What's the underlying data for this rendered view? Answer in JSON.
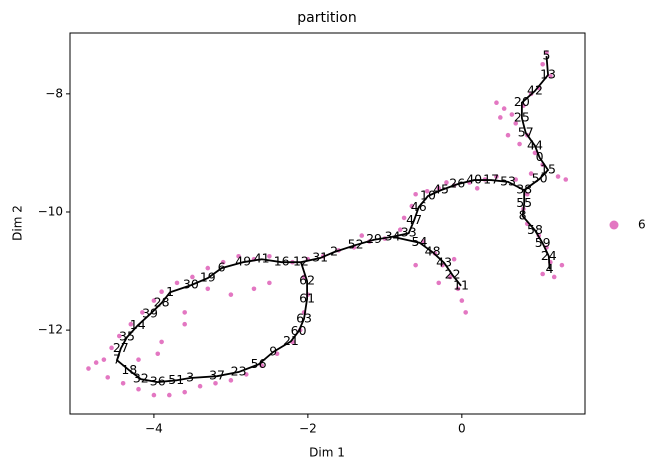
{
  "chart_data": {
    "type": "scatter",
    "title": "partition",
    "x_label": "Dim 1",
    "y_label": "Dim 2",
    "xlim": [
      -5.09,
      1.6
    ],
    "ylim": [
      -13.42,
      -6.97
    ],
    "xticks": [
      {
        "value": -4,
        "label": "−4"
      },
      {
        "value": -2,
        "label": "−2"
      },
      {
        "value": 0,
        "label": "0"
      }
    ],
    "yticks": [
      {
        "value": -8,
        "label": "−8"
      },
      {
        "value": -10,
        "label": "−10"
      },
      {
        "value": -12,
        "label": "−12"
      }
    ],
    "series": [
      {
        "name": "6",
        "color": "#e377c2",
        "x": [
          1.1,
          1.05,
          1.15,
          1.0,
          0.9,
          0.8,
          0.45,
          0.55,
          0.65,
          0.5,
          0.7,
          0.85,
          0.6,
          0.75,
          0.95,
          1.05,
          1.25,
          1.35,
          0.9,
          0.7,
          0.45,
          0.3,
          0.1,
          -0.1,
          -0.3,
          -0.45,
          -0.6,
          -0.65,
          -0.75,
          -0.8,
          0.2,
          -0.2,
          0.85,
          0.8,
          0.85,
          1.0,
          1.1,
          1.15,
          1.05,
          1.2,
          1.3,
          -0.5,
          -0.35,
          -0.25,
          -0.15,
          -0.05,
          0.0,
          0.05,
          -0.3,
          -0.6,
          -0.1,
          -1.0,
          -1.2,
          -1.4,
          -1.6,
          -1.8,
          -2.0,
          -1.3,
          -2.2,
          -2.5,
          -2.7,
          -2.9,
          -3.1,
          -3.3,
          -3.5,
          -3.7,
          -3.9,
          -4.0,
          -4.15,
          -4.3,
          -4.45,
          -4.55,
          -4.65,
          -4.75,
          -4.85,
          -4.6,
          -4.4,
          -4.2,
          -4.0,
          -3.8,
          -3.6,
          -3.4,
          -3.2,
          -3.0,
          -2.8,
          -2.6,
          -2.4,
          -2.2,
          -2.1,
          -2.05,
          -2.0,
          -2.05,
          -2.5,
          -2.7,
          -3.0,
          -3.6,
          -3.9,
          -3.95,
          -3.6,
          -4.2,
          -3.3
        ],
        "y": [
          -7.3,
          -7.5,
          -7.7,
          -7.9,
          -8.0,
          -8.2,
          -8.15,
          -8.25,
          -8.35,
          -8.4,
          -8.5,
          -8.7,
          -8.7,
          -8.85,
          -9.0,
          -9.2,
          -9.4,
          -9.45,
          -9.35,
          -9.45,
          -9.4,
          -9.45,
          -9.5,
          -9.55,
          -9.6,
          -9.65,
          -9.7,
          -9.9,
          -10.1,
          -10.3,
          -9.6,
          -9.5,
          -9.7,
          -9.95,
          -10.2,
          -10.4,
          -10.6,
          -10.85,
          -11.05,
          -11.1,
          -10.9,
          -10.5,
          -10.7,
          -10.9,
          -11.1,
          -11.3,
          -11.5,
          -11.7,
          -11.2,
          -10.9,
          -10.8,
          -10.45,
          -10.5,
          -10.6,
          -10.65,
          -10.75,
          -10.8,
          -10.4,
          -10.85,
          -10.75,
          -10.8,
          -10.75,
          -10.85,
          -10.95,
          -11.1,
          -11.2,
          -11.35,
          -11.5,
          -11.7,
          -11.9,
          -12.1,
          -12.3,
          -12.5,
          -12.55,
          -12.65,
          -12.8,
          -12.9,
          -13.0,
          -13.1,
          -13.1,
          -13.05,
          -12.95,
          -12.9,
          -12.85,
          -12.75,
          -12.6,
          -12.4,
          -12.2,
          -12.0,
          -11.7,
          -11.4,
          -11.1,
          -11.2,
          -11.3,
          -11.4,
          -11.7,
          -12.2,
          -12.4,
          -11.9,
          -12.5,
          -11.3
        ]
      }
    ],
    "branches": [
      {
        "nodes": [
          {
            "label": "5",
            "x": 1.1,
            "y": -7.36
          },
          {
            "label": "13",
            "x": 1.12,
            "y": -7.68
          },
          {
            "label": "42",
            "x": 0.95,
            "y": -7.95
          },
          {
            "label": "20",
            "x": 0.78,
            "y": -8.15
          },
          {
            "label": "25",
            "x": 0.78,
            "y": -8.41
          },
          {
            "label": "57",
            "x": 0.83,
            "y": -8.66
          },
          {
            "label": "44",
            "x": 0.95,
            "y": -8.88
          },
          {
            "label": "0",
            "x": 1.01,
            "y": -9.08
          },
          {
            "label": "15",
            "x": 1.12,
            "y": -9.29
          },
          {
            "label": "50",
            "x": 1.01,
            "y": -9.44
          },
          {
            "label": "38",
            "x": 0.81,
            "y": -9.63
          },
          {
            "label": "55",
            "x": 0.81,
            "y": -9.86
          },
          {
            "label": "8",
            "x": 0.79,
            "y": -10.07
          },
          {
            "label": "58",
            "x": 0.95,
            "y": -10.31
          },
          {
            "label": "59",
            "x": 1.05,
            "y": -10.53
          },
          {
            "label": "24",
            "x": 1.13,
            "y": -10.75
          },
          {
            "label": "4",
            "x": 1.14,
            "y": -10.97
          }
        ]
      },
      {
        "from": "38",
        "nodes": [
          {
            "label": "53",
            "x": 0.6,
            "y": -9.49
          },
          {
            "label": "17",
            "x": 0.38,
            "y": -9.46
          },
          {
            "label": "40",
            "x": 0.16,
            "y": -9.46
          },
          {
            "label": "26",
            "x": -0.06,
            "y": -9.53
          },
          {
            "label": "45",
            "x": -0.27,
            "y": -9.63
          },
          {
            "label": "10",
            "x": -0.44,
            "y": -9.73
          },
          {
            "label": "46",
            "x": -0.56,
            "y": -9.92
          },
          {
            "label": "47",
            "x": -0.62,
            "y": -10.14
          },
          {
            "label": "33",
            "x": -0.69,
            "y": -10.36
          },
          {
            "label": "34",
            "x": -0.9,
            "y": -10.42
          },
          {
            "label": "54",
            "x": -0.55,
            "y": -10.52
          },
          {
            "label": "48",
            "x": -0.38,
            "y": -10.68
          },
          {
            "label": "43",
            "x": -0.23,
            "y": -10.86
          },
          {
            "label": "22",
            "x": -0.12,
            "y": -11.07
          },
          {
            "label": "11",
            "x": -0.01,
            "y": -11.25
          }
        ]
      },
      {
        "from": "34",
        "to": "12",
        "nodes": [
          {
            "label": "29",
            "x": -1.14,
            "y": -10.47
          },
          {
            "label": "52",
            "x": -1.38,
            "y": -10.56
          },
          {
            "label": "2",
            "x": -1.66,
            "y": -10.68
          },
          {
            "label": "31",
            "x": -1.84,
            "y": -10.78
          },
          {
            "label": "12",
            "x": -2.09,
            "y": -10.85
          },
          {
            "label": "16",
            "x": -2.34,
            "y": -10.85
          },
          {
            "label": "41",
            "x": -2.6,
            "y": -10.8
          },
          {
            "label": "49",
            "x": -2.84,
            "y": -10.85
          },
          {
            "label": "6",
            "x": -3.12,
            "y": -10.95
          },
          {
            "label": "19",
            "x": -3.3,
            "y": -11.12
          },
          {
            "label": "30",
            "x": -3.52,
            "y": -11.24
          },
          {
            "label": "1",
            "x": -3.79,
            "y": -11.36
          },
          {
            "label": "28",
            "x": -3.9,
            "y": -11.54
          },
          {
            "label": "39",
            "x": -4.05,
            "y": -11.73
          },
          {
            "label": "14",
            "x": -4.21,
            "y": -11.92
          },
          {
            "label": "35",
            "x": -4.35,
            "y": -12.12
          },
          {
            "label": "27",
            "x": -4.43,
            "y": -12.31
          },
          {
            "label": "7",
            "x": -4.48,
            "y": -12.51
          },
          {
            "label": "18",
            "x": -4.32,
            "y": -12.68
          },
          {
            "label": "32",
            "x": -4.17,
            "y": -12.83
          },
          {
            "label": "36",
            "x": -3.95,
            "y": -12.88
          },
          {
            "label": "51",
            "x": -3.71,
            "y": -12.85
          },
          {
            "label": "3",
            "x": -3.53,
            "y": -12.81
          },
          {
            "label": "37",
            "x": -3.18,
            "y": -12.78
          },
          {
            "label": "23",
            "x": -2.9,
            "y": -12.71
          },
          {
            "label": "56",
            "x": -2.64,
            "y": -12.58
          },
          {
            "label": "9",
            "x": -2.45,
            "y": -12.37
          },
          {
            "label": "21",
            "x": -2.22,
            "y": -12.19
          },
          {
            "label": "60",
            "x": -2.12,
            "y": -12.02
          },
          {
            "label": "63",
            "x": -2.05,
            "y": -11.81
          },
          {
            "label": "61",
            "x": -2.01,
            "y": -11.47
          },
          {
            "label": "62",
            "x": -2.01,
            "y": -11.17
          }
        ]
      }
    ]
  }
}
